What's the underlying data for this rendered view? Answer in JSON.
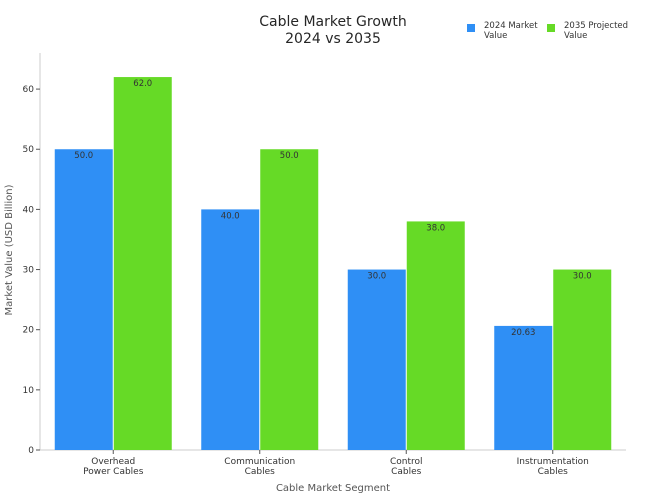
{
  "chart_data": {
    "type": "bar",
    "title": [
      "Cable Market Growth",
      "2024 vs 2035"
    ],
    "xlabel": "Cable Market Segment",
    "ylabel": "Market Value (USD Billion)",
    "categories": [
      [
        "Overhead",
        "Power Cables"
      ],
      [
        "Communication",
        "Cables"
      ],
      [
        "Control",
        "Cables"
      ],
      [
        "Instrumentation",
        "Cables"
      ]
    ],
    "series": [
      {
        "name": [
          "2024 Market",
          "Value"
        ],
        "color": "#2f8ff5",
        "values": [
          50.0,
          40.0,
          30.0,
          20.63
        ],
        "labels": [
          "50.0",
          "40.0",
          "30.0",
          "20.63"
        ]
      },
      {
        "name": [
          "2035 Projected",
          "Value"
        ],
        "color": "#66da26",
        "values": [
          62.0,
          50.0,
          38.0,
          30.0
        ],
        "labels": [
          "62.0",
          "50.0",
          "38.0",
          "30.0"
        ]
      }
    ],
    "ylim": [
      0,
      66
    ],
    "yticks": [
      0,
      10,
      20,
      30,
      40,
      50,
      60
    ],
    "grid": false,
    "legend": "top-right"
  }
}
